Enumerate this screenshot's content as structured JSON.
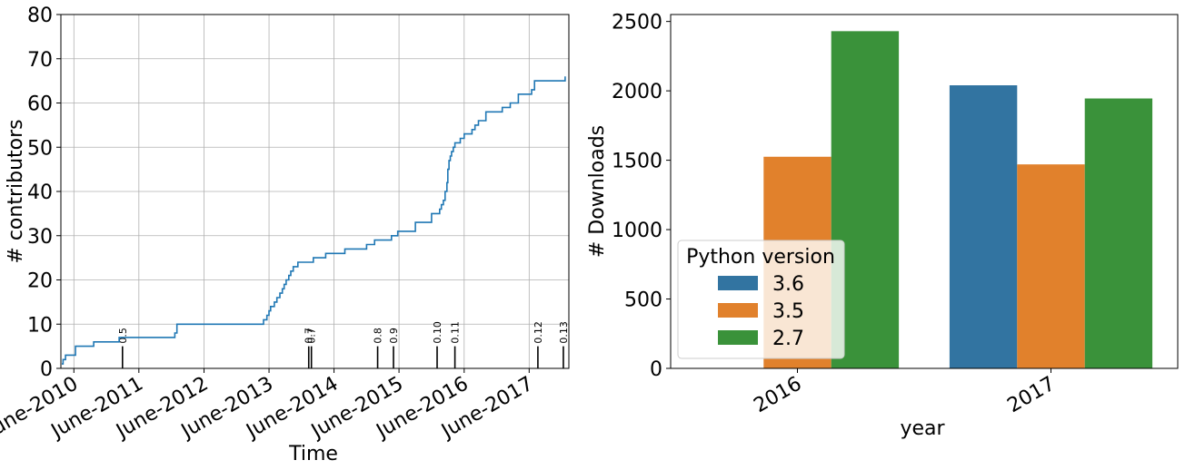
{
  "chart_data": [
    {
      "type": "line",
      "xlabel": "Time",
      "ylabel": "# contributors",
      "ylim": [
        0,
        80
      ],
      "yticks": [
        0,
        10,
        20,
        30,
        40,
        50,
        60,
        70,
        80
      ],
      "xlim": [
        "2010-03-20",
        "2018-01-10"
      ],
      "xticks": [
        {
          "date": "2010-06-01",
          "label": "June-2010"
        },
        {
          "date": "2011-06-01",
          "label": "June-2011"
        },
        {
          "date": "2012-06-01",
          "label": "June-2012"
        },
        {
          "date": "2013-06-01",
          "label": "June-2013"
        },
        {
          "date": "2014-06-01",
          "label": "June-2014"
        },
        {
          "date": "2015-06-01",
          "label": "June-2015"
        },
        {
          "date": "2016-06-01",
          "label": "June-2016"
        },
        {
          "date": "2017-06-01",
          "label": "June-2017"
        }
      ],
      "grid": true,
      "line_color": "#1f77b4",
      "series": [
        {
          "x": [
            "2010-03-25",
            "2010-04-01",
            "2010-04-05",
            "2010-04-15",
            "2010-04-25",
            "2010-05-30",
            "2010-06-10",
            "2010-09-15",
            "2010-09-20",
            "2011-01-20",
            "2011-02-10",
            "2011-12-01",
            "2011-12-20",
            "2012-01-01",
            "2013-01-20",
            "2013-05-01",
            "2013-05-20",
            "2013-06-01",
            "2013-06-10",
            "2013-06-20",
            "2013-07-01",
            "2013-07-15",
            "2013-08-01",
            "2013-08-15",
            "2013-08-25",
            "2013-09-05",
            "2013-09-20",
            "2013-10-01",
            "2013-10-15",
            "2013-11-10",
            "2013-12-10",
            "2014-02-05",
            "2014-04-15",
            "2014-05-20",
            "2014-08-01",
            "2014-09-01",
            "2014-12-01",
            "2015-01-15",
            "2015-01-20",
            "2015-01-30",
            "2015-02-10",
            "2015-03-01",
            "2015-04-01",
            "2015-04-20",
            "2015-05-25",
            "2015-09-01",
            "2015-12-01",
            "2016-01-15",
            "2016-01-25",
            "2016-02-05",
            "2016-02-15",
            "2016-02-25",
            "2016-03-01",
            "2016-03-08",
            "2016-03-15",
            "2016-03-22",
            "2016-04-01",
            "2016-04-10",
            "2016-05-10",
            "2016-06-01",
            "2016-06-15",
            "2016-07-15",
            "2016-08-01",
            "2016-08-20",
            "2016-09-15",
            "2016-10-01",
            "2016-12-01",
            "2017-01-01",
            "2017-02-15",
            "2017-03-01",
            "2017-04-01",
            "2017-06-01",
            "2017-06-15",
            "2017-07-01",
            "2017-07-15",
            "2017-11-25",
            "2017-12-20"
          ],
          "y": [
            1,
            2,
            2,
            3,
            3,
            3,
            5,
            5,
            6,
            6,
            7,
            7,
            8,
            10,
            10,
            11,
            12,
            13,
            14,
            14,
            15,
            16,
            17,
            18,
            19,
            20,
            21,
            22,
            23,
            24,
            24,
            25,
            26,
            26,
            27,
            27,
            28,
            29,
            29,
            29,
            29,
            29,
            29,
            30,
            31,
            33,
            35,
            36,
            37,
            38,
            40,
            42,
            45,
            47,
            48,
            49,
            50,
            51,
            52,
            53,
            53,
            54,
            55,
            56,
            56,
            58,
            58,
            59,
            60,
            60,
            62,
            62,
            63,
            65,
            65,
            65,
            66
          ]
        }
      ],
      "release_markers": [
        {
          "date": "2011-03-01",
          "label": "0.5"
        },
        {
          "date": "2014-01-10",
          "label": "0.7"
        },
        {
          "date": "2014-01-25",
          "label": "0.7"
        },
        {
          "date": "2015-02-01",
          "label": "0.8"
        },
        {
          "date": "2015-05-01",
          "label": "0.9"
        },
        {
          "date": "2016-01-01",
          "label": "0.10"
        },
        {
          "date": "2016-04-10",
          "label": "0.11"
        },
        {
          "date": "2017-07-20",
          "label": "0.12"
        },
        {
          "date": "2017-12-10",
          "label": "0.13"
        }
      ],
      "marker_height": 5
    },
    {
      "type": "bar",
      "xlabel": "year",
      "ylabel": "# Downloads",
      "ylim": [
        0,
        2550
      ],
      "yticks": [
        0,
        500,
        1000,
        1500,
        2000,
        2500
      ],
      "categories": [
        "2016",
        "2017"
      ],
      "series": [
        {
          "name": "3.6",
          "color": "#3274a1",
          "values": [
            0,
            2040
          ]
        },
        {
          "name": "3.5",
          "color": "#e1812c",
          "values": [
            1525,
            1470
          ]
        },
        {
          "name": "2.7",
          "color": "#3a923a",
          "values": [
            2430,
            1945
          ]
        }
      ],
      "legend": {
        "title": "Python version",
        "placement": "lower-left"
      },
      "grid": false
    }
  ]
}
